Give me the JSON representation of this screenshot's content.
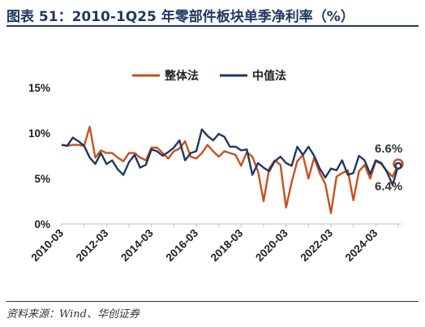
{
  "header": {
    "title": "图表 51：2010-1Q25 年零部件板块单季净利率（%）"
  },
  "footer": {
    "source": "资料来源：Wind、华创证券"
  },
  "colors": {
    "series_1": "#c8501e",
    "series_2": "#1f3864",
    "axis": "#bfbfbf",
    "title": "#1f3864"
  },
  "chart_data": {
    "type": "line",
    "title": "",
    "xlabel": "",
    "ylabel": "",
    "ylim": [
      0,
      15
    ],
    "yticks": [
      0,
      5,
      10,
      15
    ],
    "ytick_labels": [
      "0%",
      "5%",
      "10%",
      "15%"
    ],
    "xtick_labels": [
      "2010-03",
      "2012-03",
      "2014-03",
      "2016-03",
      "2018-03",
      "2020-03",
      "2022-03",
      "2024-03"
    ],
    "legend_position": "top-center",
    "grid": false,
    "x": [
      "2010-03",
      "2010-06",
      "2010-09",
      "2010-12",
      "2011-03",
      "2011-06",
      "2011-09",
      "2011-12",
      "2012-03",
      "2012-06",
      "2012-09",
      "2012-12",
      "2013-03",
      "2013-06",
      "2013-09",
      "2013-12",
      "2014-03",
      "2014-06",
      "2014-09",
      "2014-12",
      "2015-03",
      "2015-06",
      "2015-09",
      "2015-12",
      "2016-03",
      "2016-06",
      "2016-09",
      "2016-12",
      "2017-03",
      "2017-06",
      "2017-09",
      "2017-12",
      "2018-03",
      "2018-06",
      "2018-09",
      "2018-12",
      "2019-03",
      "2019-06",
      "2019-09",
      "2019-12",
      "2020-03",
      "2020-06",
      "2020-09",
      "2020-12",
      "2021-03",
      "2021-06",
      "2021-09",
      "2021-12",
      "2022-03",
      "2022-06",
      "2022-09",
      "2022-12",
      "2023-03",
      "2023-06",
      "2023-09",
      "2023-12",
      "2024-03",
      "2024-06",
      "2024-09",
      "2024-12",
      "2025-03"
    ],
    "series": [
      {
        "name": "整体法",
        "values": [
          8.7,
          8.6,
          8.7,
          8.7,
          8.6,
          10.7,
          7.3,
          8.1,
          7.8,
          7.8,
          7.3,
          6.9,
          7.8,
          7.8,
          7.3,
          7.0,
          8.4,
          8.4,
          7.8,
          7.2,
          8.0,
          8.3,
          9.1,
          7.4,
          7.2,
          7.8,
          8.7,
          8.0,
          7.4,
          8.0,
          7.8,
          7.6,
          6.4,
          7.9,
          7.4,
          5.8,
          2.5,
          6.1,
          7.0,
          6.5,
          1.8,
          4.6,
          6.9,
          7.6,
          5.0,
          7.3,
          5.6,
          4.4,
          1.2,
          5.2,
          5.6,
          5.9,
          2.6,
          5.8,
          6.5,
          5.0,
          6.9,
          6.6,
          5.8,
          5.2,
          6.6
        ]
      },
      {
        "name": "中值法",
        "values": [
          8.7,
          8.6,
          9.5,
          9.1,
          8.6,
          7.3,
          6.6,
          7.8,
          6.6,
          7.0,
          6.0,
          5.4,
          6.8,
          7.6,
          6.2,
          6.5,
          8.2,
          8.0,
          7.5,
          7.9,
          8.4,
          9.2,
          7.0,
          7.8,
          8.0,
          10.4,
          9.7,
          9.2,
          9.9,
          9.6,
          8.5,
          8.5,
          8.1,
          8.2,
          5.4,
          6.7,
          6.2,
          5.8,
          6.9,
          7.4,
          6.7,
          6.4,
          8.5,
          7.6,
          8.5,
          7.5,
          6.1,
          5.1,
          6.1,
          5.9,
          7.0,
          5.4,
          5.6,
          7.5,
          7.0,
          5.5,
          7.0,
          6.7,
          5.7,
          4.3,
          6.4
        ]
      }
    ],
    "annotations": [
      {
        "label": "6.6%",
        "series": 0,
        "x": "2025-03"
      },
      {
        "label": "6.4%",
        "series": 1,
        "x": "2025-03"
      }
    ]
  }
}
